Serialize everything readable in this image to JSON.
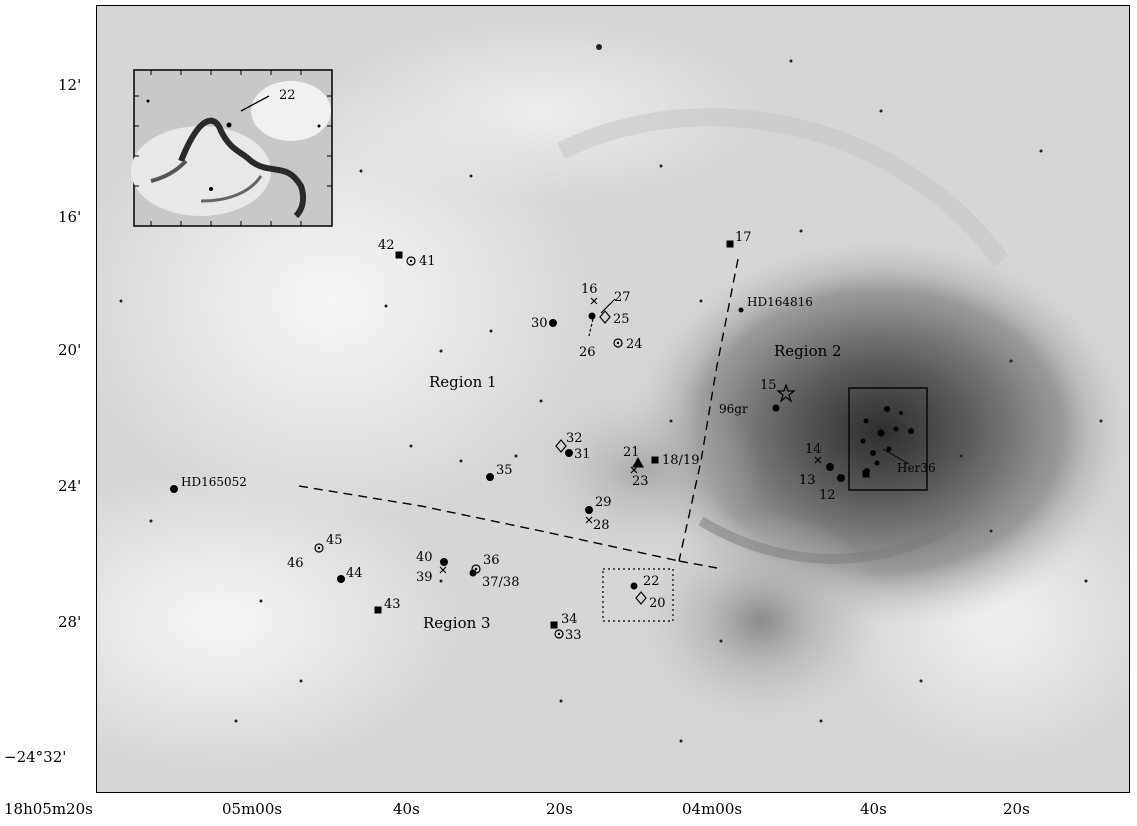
{
  "axes": {
    "y_ticks": [
      "12'",
      "16'",
      "20'",
      "24'",
      "28'",
      "−24°32'"
    ],
    "x_ticks": [
      "18h05m20s",
      "05m00s",
      "40s",
      "20s",
      "04m00s",
      "40s",
      "20s"
    ]
  },
  "inset": {
    "label": "22"
  },
  "regions": {
    "region1": "Region 1",
    "region2": "Region 2",
    "region3": "Region 3"
  },
  "stars": {
    "hd164816": "HD164816",
    "hd165052": "HD165052",
    "her36": "Her36",
    "s96gr": "96gr"
  },
  "sources": {
    "s12": "12",
    "s13": "13",
    "s14": "14",
    "s15": "15",
    "s16": "16",
    "s17": "17",
    "s18_19": "18/19",
    "s20": "20",
    "s21": "21",
    "s22": "22",
    "s23": "23",
    "s24": "24",
    "s25": "25",
    "s26": "26",
    "s27": "27",
    "s28": "28",
    "s29": "29",
    "s30": "30",
    "s31": "31",
    "s32": "32",
    "s33": "33",
    "s34": "34",
    "s35": "35",
    "s36": "36",
    "s37_38": "37/38",
    "s39": "39",
    "s40": "40",
    "s41": "41",
    "s42": "42",
    "s43": "43",
    "s44": "44",
    "s45": "45",
    "s46": "46"
  }
}
